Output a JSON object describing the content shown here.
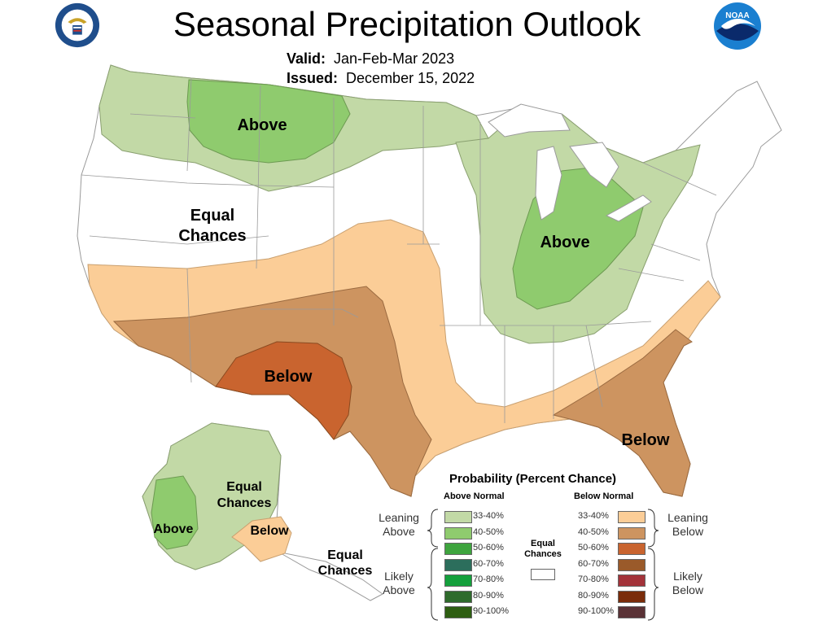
{
  "header": {
    "title": "Seasonal Precipitation Outlook",
    "valid_label": "Valid:",
    "valid_value": "Jan-Feb-Mar 2023",
    "issued_label": "Issued:",
    "issued_value": "December 15, 2022",
    "left_logo": "commerce-seal-icon",
    "right_logo": "noaa-logo-icon",
    "noaa_text": "NOAA"
  },
  "colors": {
    "above_33_40": "#c2d9a6",
    "above_40_50": "#8fcb6e",
    "below_33_40": "#fbcd97",
    "below_40_50": "#cd9460",
    "below_50_60": "#c9642f",
    "boundary": "#9a9a9a"
  },
  "map_labels": {
    "above_north": "Above",
    "equal_west_1": "Equal",
    "equal_west_2": "Chances",
    "above_midwest": "Above",
    "below_southwest": "Below",
    "below_florida": "Below",
    "ak_equal_1": "Equal",
    "ak_equal_2": "Chances",
    "ak_above": "Above",
    "ak_below": "Below",
    "ak_equal_se_1": "Equal",
    "ak_equal_se_2": "Chances"
  },
  "legend": {
    "title": "Probability (Percent Chance)",
    "above_header": "Above Normal",
    "below_header": "Below Normal",
    "equal_chances_1": "Equal",
    "equal_chances_2": "Chances",
    "leaning_above_1": "Leaning",
    "leaning_above_2": "Above",
    "likely_above_1": "Likely",
    "likely_above_2": "Above",
    "leaning_below_1": "Leaning",
    "leaning_below_2": "Below",
    "likely_below_1": "Likely",
    "likely_below_2": "Below",
    "above_items": [
      {
        "label": "33-40%",
        "color": "#c2d9a6"
      },
      {
        "label": "40-50%",
        "color": "#8fcb6e"
      },
      {
        "label": "50-60%",
        "color": "#3ea43e"
      },
      {
        "label": "60-70%",
        "color": "#2c6e5c"
      },
      {
        "label": "70-80%",
        "color": "#14a03c"
      },
      {
        "label": "80-90%",
        "color": "#2f6b2c"
      },
      {
        "label": "90-100%",
        "color": "#2e5e12"
      }
    ],
    "below_items": [
      {
        "label": "33-40%",
        "color": "#fbcd97"
      },
      {
        "label": "40-50%",
        "color": "#cd9460"
      },
      {
        "label": "50-60%",
        "color": "#c9642f"
      },
      {
        "label": "60-70%",
        "color": "#9a5a2a"
      },
      {
        "label": "70-80%",
        "color": "#a3333a"
      },
      {
        "label": "80-90%",
        "color": "#7a2c0a"
      },
      {
        "label": "90-100%",
        "color": "#5a3236"
      }
    ]
  }
}
